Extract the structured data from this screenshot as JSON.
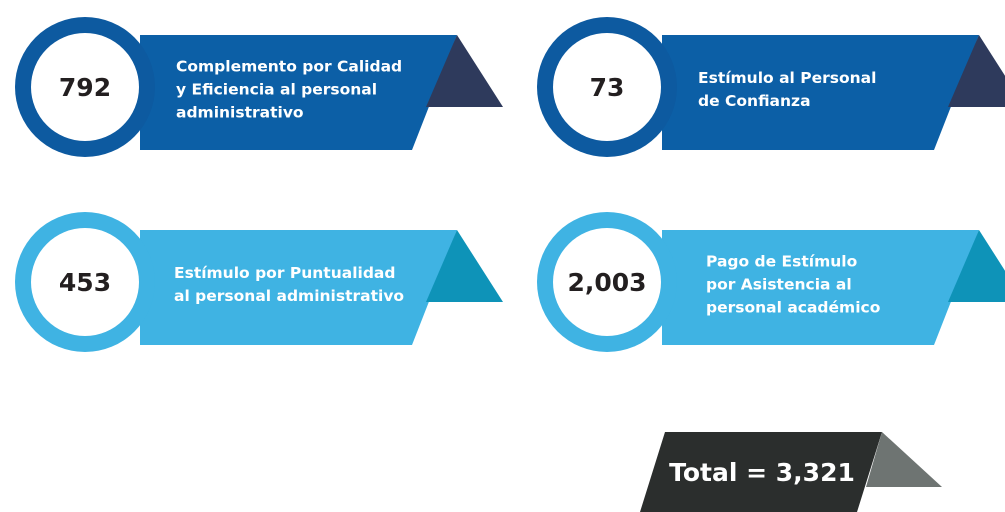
{
  "items": [
    {
      "number": "792",
      "lines": [
        "Complemento por Calidad",
        "y Eficiencia al personal",
        "administrativo"
      ]
    },
    {
      "number": "73",
      "lines": [
        "Estímulo al Personal",
        "de Confianza"
      ]
    },
    {
      "number": "453",
      "lines": [
        "Estímulo por Puntualidad",
        "al personal administrativo"
      ]
    },
    {
      "number": "2,003",
      "lines": [
        "Pago de Estímulo",
        "por Asistencia al",
        "personal académico"
      ]
    }
  ],
  "total": "Total = 3,321"
}
